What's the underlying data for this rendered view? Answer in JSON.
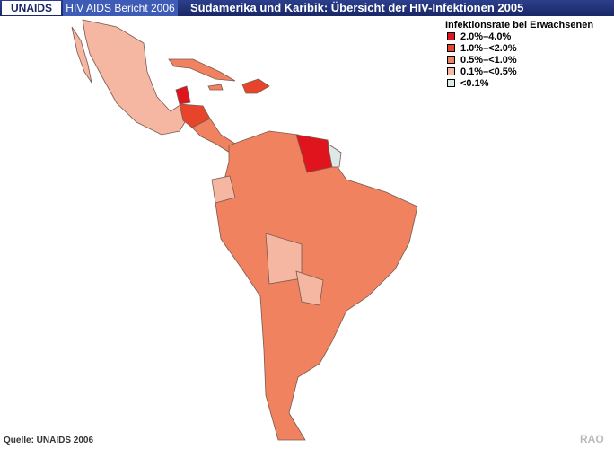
{
  "header": {
    "logo": "UNAIDS",
    "report": "HIV AIDS Bericht 2006",
    "title": "Südamerika und Karibik: Übersicht der HIV-Infektionen 2005"
  },
  "legend": {
    "title": "Infektionsrate bei Erwachsenen",
    "items": [
      {
        "label": "2.0%–4.0%",
        "color": "#e0141c"
      },
      {
        "label": "1.0%–<2.0%",
        "color": "#e8442c"
      },
      {
        "label": "0.5%–<1.0%",
        "color": "#f0825f"
      },
      {
        "label": "0.1%–<0.5%",
        "color": "#f5b6a2"
      },
      {
        "label": "<0.1%",
        "color": "#dde8e8"
      }
    ]
  },
  "footer": {
    "source": "Quelle: UNAIDS 2006",
    "credit": "RAO"
  }
}
